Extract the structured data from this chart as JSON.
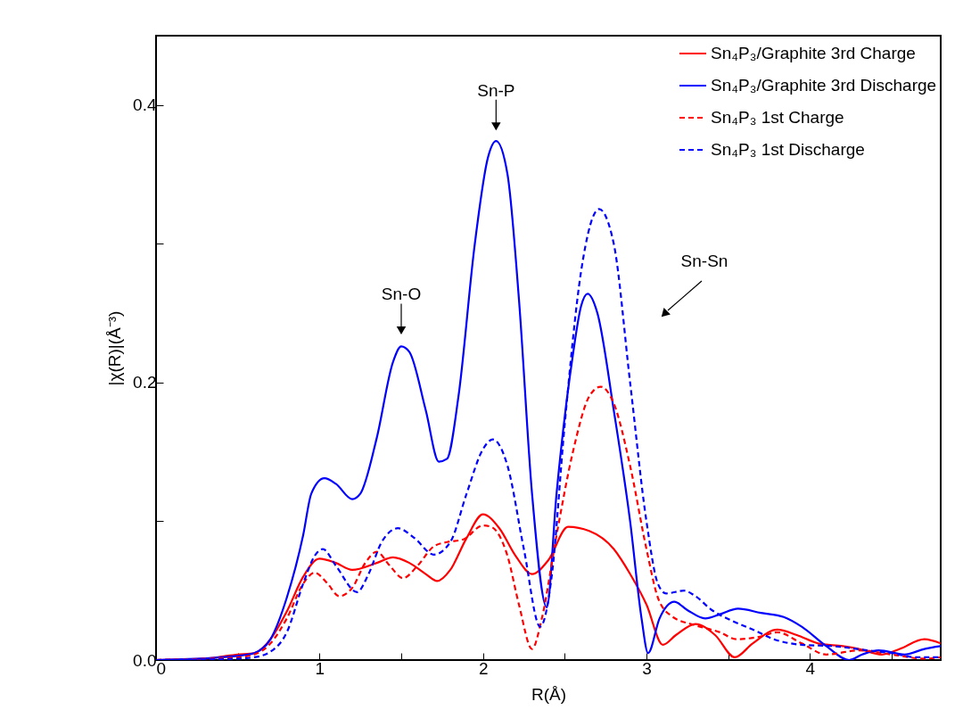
{
  "chart_data": {
    "type": "line",
    "xlabel": "R(Å)",
    "ylabel": "|χ(R)|(Å⁻³)",
    "xlim": [
      0,
      4.8
    ],
    "ylim": [
      0,
      0.45
    ],
    "xticks": [
      0,
      {
        "value": 0.5,
        "label": null
      },
      1,
      {
        "value": 1.5,
        "label": null
      },
      2,
      {
        "value": 2.5,
        "label": null
      },
      3,
      {
        "value": 3.5,
        "label": null
      },
      4,
      {
        "value": 4.5,
        "label": null
      }
    ],
    "yticks": [
      {
        "value": 0,
        "label": "0.0"
      },
      {
        "value": 0.1,
        "label": null
      },
      {
        "value": 0.2,
        "label": "0.2"
      },
      {
        "value": 0.3,
        "label": null
      },
      {
        "value": 0.4,
        "label": "0.4"
      }
    ],
    "legend": "top right",
    "marker": "none",
    "annotations": [
      {
        "text": "Sn-O",
        "x": 1.5,
        "y": 0.226
      },
      {
        "text": "Sn-P",
        "x": 2.08,
        "y": 0.373
      },
      "Sn-Sn"
    ],
    "series": [
      {
        "name": "Sn₄P₃/Graphite 3rd Charge",
        "color": "#ff0000",
        "line_style": "solid",
        "x": [
          0,
          0.3,
          0.5,
          0.6,
          0.7,
          0.8,
          0.9,
          1.0,
          1.1,
          1.2,
          1.35,
          1.45,
          1.55,
          1.65,
          1.72,
          1.8,
          1.9,
          2.0,
          2.1,
          2.2,
          2.3,
          2.4,
          2.52,
          2.65,
          2.8,
          2.9,
          3.0,
          3.1,
          3.18,
          3.3,
          3.42,
          3.54,
          3.65,
          3.8,
          3.92,
          4.05,
          4.2,
          4.3,
          4.44,
          4.55,
          4.7,
          4.8
        ],
        "values": [
          0,
          0.001,
          0.004,
          0.005,
          0.015,
          0.035,
          0.06,
          0.073,
          0.07,
          0.065,
          0.07,
          0.074,
          0.07,
          0.062,
          0.057,
          0.065,
          0.088,
          0.105,
          0.095,
          0.075,
          0.062,
          0.072,
          0.096,
          0.093,
          0.08,
          0.062,
          0.04,
          0.011,
          0.018,
          0.026,
          0.018,
          0.002,
          0.012,
          0.022,
          0.018,
          0.012,
          0.01,
          0.008,
          0.004,
          0.008,
          0.015,
          0.012
        ]
      },
      {
        "name": "Sn₄P₃/Graphite 3rd Discharge",
        "color": "#0000ff",
        "line_style": "solid",
        "x": [
          0,
          0.5,
          0.6,
          0.7,
          0.8,
          0.9,
          0.95,
          1.03,
          1.1,
          1.2,
          1.25,
          1.35,
          1.45,
          1.5,
          1.55,
          1.65,
          1.73,
          1.78,
          1.85,
          1.95,
          2.03,
          2.08,
          2.15,
          2.22,
          2.3,
          2.39,
          2.45,
          2.55,
          2.6,
          2.64,
          2.7,
          2.8,
          2.9,
          2.97,
          3.01,
          3.08,
          3.17,
          3.25,
          3.36,
          3.45,
          3.56,
          3.7,
          3.84,
          3.95,
          4.1,
          4.24,
          4.32,
          4.42,
          4.58,
          4.7,
          4.8
        ],
        "values": [
          0,
          0.003,
          0.005,
          0.015,
          0.045,
          0.09,
          0.12,
          0.131,
          0.127,
          0.116,
          0.12,
          0.16,
          0.215,
          0.226,
          0.222,
          0.18,
          0.143,
          0.145,
          0.19,
          0.3,
          0.362,
          0.374,
          0.35,
          0.26,
          0.12,
          0.038,
          0.12,
          0.22,
          0.255,
          0.264,
          0.25,
          0.18,
          0.1,
          0.03,
          0.005,
          0.03,
          0.042,
          0.036,
          0.03,
          0.033,
          0.037,
          0.034,
          0.031,
          0.024,
          0.01,
          0,
          0.004,
          0.007,
          0.004,
          0.008,
          0.01
        ]
      },
      {
        "name": "Sn₄P₃ 1st Charge",
        "color": "#ff0000",
        "line_style": "dashed",
        "x": [
          0,
          0.5,
          0.6,
          0.7,
          0.8,
          0.9,
          0.97,
          1.05,
          1.12,
          1.2,
          1.28,
          1.35,
          1.43,
          1.51,
          1.6,
          1.7,
          1.78,
          1.88,
          2.0,
          2.05,
          2.15,
          2.22,
          2.3,
          2.36,
          2.45,
          2.55,
          2.65,
          2.72,
          2.8,
          2.9,
          3.0,
          3.07,
          3.15,
          3.3,
          3.45,
          3.55,
          3.7,
          3.8,
          3.95,
          4.1,
          4.3,
          4.5,
          4.7,
          4.8
        ],
        "values": [
          0,
          0.002,
          0.004,
          0.012,
          0.03,
          0.055,
          0.063,
          0.055,
          0.046,
          0.052,
          0.07,
          0.078,
          0.068,
          0.059,
          0.068,
          0.082,
          0.085,
          0.087,
          0.097,
          0.096,
          0.075,
          0.04,
          0.008,
          0.03,
          0.09,
          0.15,
          0.19,
          0.197,
          0.185,
          0.14,
          0.08,
          0.045,
          0.032,
          0.025,
          0.02,
          0.015,
          0.017,
          0.02,
          0.012,
          0.004,
          0.007,
          0.004,
          0.001,
          0.002
        ]
      },
      {
        "name": "Sn₄P₃ 1st Discharge",
        "color": "#0000ff",
        "line_style": "dashed",
        "x": [
          0,
          0.5,
          0.6,
          0.7,
          0.8,
          0.9,
          0.97,
          1.02,
          1.1,
          1.23,
          1.3,
          1.38,
          1.48,
          1.58,
          1.7,
          1.8,
          1.9,
          2.0,
          2.06,
          2.15,
          2.25,
          2.35,
          2.42,
          2.5,
          2.6,
          2.71,
          2.8,
          2.9,
          3.0,
          3.07,
          3.12,
          3.23,
          3.3,
          3.4,
          3.53,
          3.65,
          3.78,
          3.95,
          4.15,
          4.35,
          4.5,
          4.65,
          4.8
        ],
        "values": [
          0,
          0.001,
          0.002,
          0.006,
          0.02,
          0.055,
          0.075,
          0.08,
          0.068,
          0.049,
          0.062,
          0.085,
          0.095,
          0.088,
          0.076,
          0.085,
          0.12,
          0.152,
          0.159,
          0.14,
          0.08,
          0.024,
          0.06,
          0.17,
          0.28,
          0.325,
          0.3,
          0.2,
          0.1,
          0.055,
          0.048,
          0.05,
          0.046,
          0.036,
          0.028,
          0.022,
          0.015,
          0.011,
          0.01,
          0.007,
          0.005,
          0.002,
          0.002
        ]
      }
    ]
  }
}
